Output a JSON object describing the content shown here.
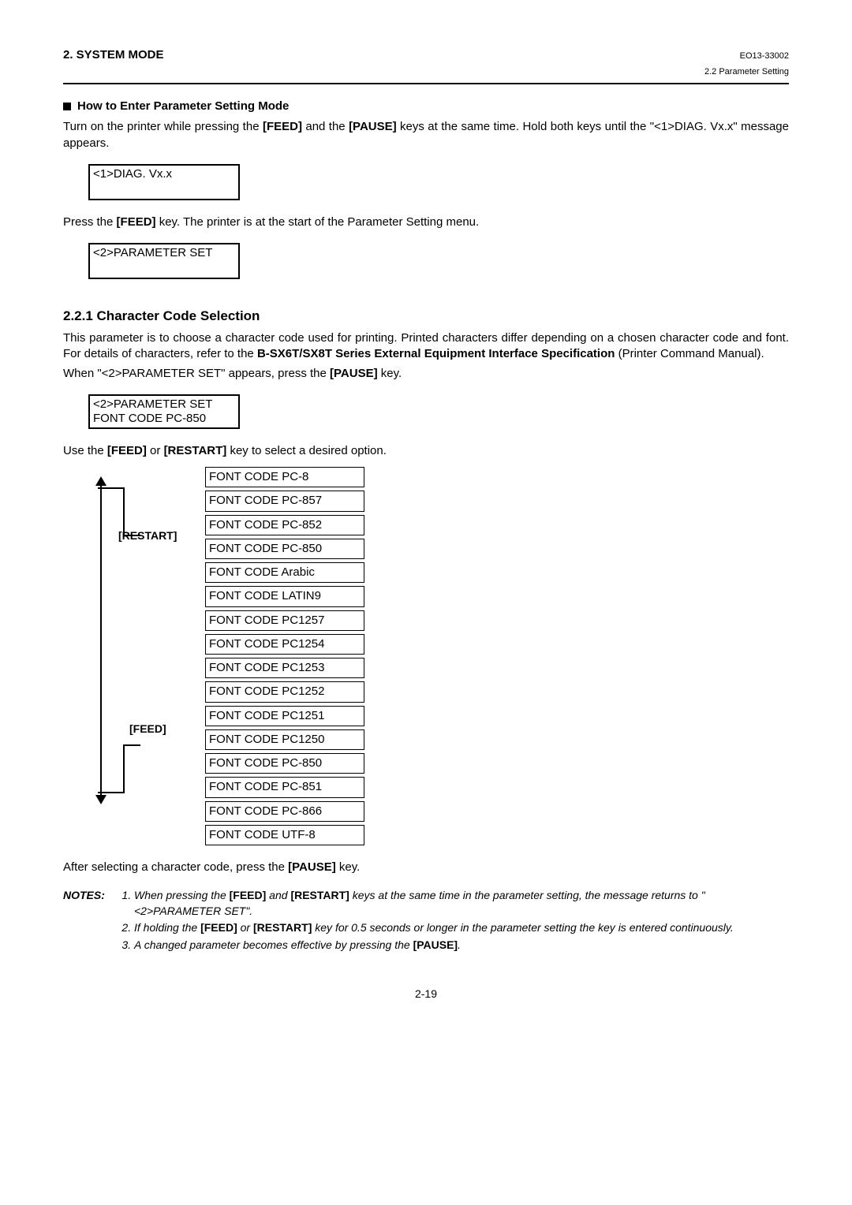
{
  "header": {
    "left": "2. SYSTEM MODE",
    "right": "EO13-33002",
    "sub": "2.2 Parameter Setting"
  },
  "sec1": {
    "title": "How to Enter Parameter Setting Mode",
    "p1a": "Turn on the printer while pressing the ",
    "feed": "[FEED]",
    "p1b": " and the ",
    "pause": "[PAUSE]",
    "p1c": " keys at the same time.  Hold both keys until the \"<1>DIAG. Vx.x\" message appears.",
    "lcd1": "<1>DIAG.   Vx.x",
    "p2a": "Press the ",
    "p2b": " key.  The printer is at the start of the Parameter Setting menu.",
    "lcd2": "<2>PARAMETER SET"
  },
  "sec2": {
    "title": "2.2.1  Character Code Selection",
    "p1": "This parameter is to choose a character code used for printing.  Printed characters differ depending on a chosen character code and font.  For details of characters, refer to the ",
    "bold1": "B-SX6T/SX8T Series External Equipment Interface Specification",
    "p1b": " (Printer Command Manual).",
    "p2a": "When \"<2>PARAMETER SET\" appears, press the ",
    "p2b": " key.",
    "lcd3_l1": "<2>PARAMETER SET",
    "lcd3_l2": "FONT CODE PC-850",
    "p3a": "Use the ",
    "restart": "[RESTART]",
    "p3b": " or ",
    "p3c": " key to select a desired option.",
    "arrow_top_label": "[RESTART]",
    "arrow_bot_label": "[FEED]",
    "options": [
      "FONT CODE PC-8",
      "FONT CODE PC-857",
      "FONT CODE PC-852",
      "FONT CODE PC-850",
      "FONT CODE Arabic",
      "FONT CODE LATIN9",
      "FONT CODE PC1257",
      "FONT CODE PC1254",
      "FONT CODE PC1253",
      "FONT CODE PC1252",
      "FONT CODE PC1251",
      "FONT CODE PC1250",
      "FONT CODE PC-850",
      "FONT CODE PC-851",
      "FONT CODE PC-866",
      "FONT CODE UTF-8"
    ],
    "p4a": "After selecting a character code, press the ",
    "p4b": " key."
  },
  "notes": {
    "label": "NOTES:",
    "n1a": "When pressing the ",
    "n1b": " and ",
    "n1c": " keys at the same time in the parameter setting, the message returns to \"<2>PARAMETER SET\".",
    "n2a": "If holding the ",
    "n2b": " or ",
    "n2c": " key for 0.5 seconds or longer in the parameter setting the key is entered continuously.",
    "n3a": "A changed parameter becomes effective by pressing the ",
    "n3b": "."
  },
  "footer": "2-19"
}
